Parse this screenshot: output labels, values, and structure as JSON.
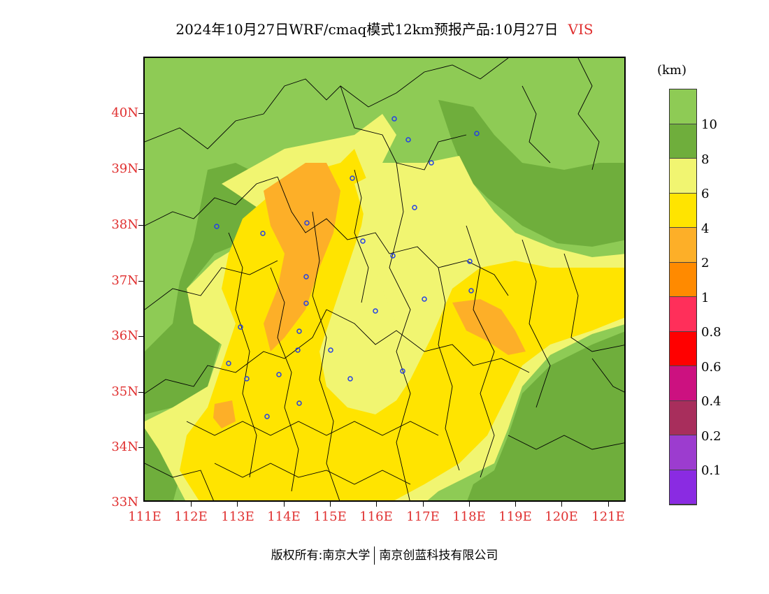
{
  "header": {
    "title": "2024年10月27日WRF/cmaq模式12km预报产品:10月27日",
    "variable": "VIS"
  },
  "map": {
    "lat_labels": [
      "40N",
      "39N",
      "38N",
      "37N",
      "36N",
      "35N",
      "34N",
      "33N"
    ],
    "lon_labels": [
      "111E",
      "112E",
      "113E",
      "114E",
      "115E",
      "116E",
      "117E",
      "118E",
      "119E",
      "120E",
      "121E"
    ],
    "extent": {
      "lon_min": 111,
      "lon_max": 121.4,
      "lat_min": 33,
      "lat_max": 40.95
    }
  },
  "colorbar": {
    "unit": "(km)",
    "labels": [
      "10",
      "8",
      "6",
      "4",
      "2",
      "1",
      "0.8",
      "0.6",
      "0.4",
      "0.2",
      "0.1"
    ],
    "colors": [
      "#8ecb55",
      "#6fae3c",
      "#f1f571",
      "#ffe400",
      "#fdaf28",
      "#ff8a00",
      "#ff2f5a",
      "#ff0000",
      "#cc1180",
      "#a82e5c",
      "#9c3ccf",
      "#8a2be2"
    ]
  },
  "footer": {
    "left": "版权所有:南京大学",
    "right": "南京创蓝科技有限公司"
  }
}
